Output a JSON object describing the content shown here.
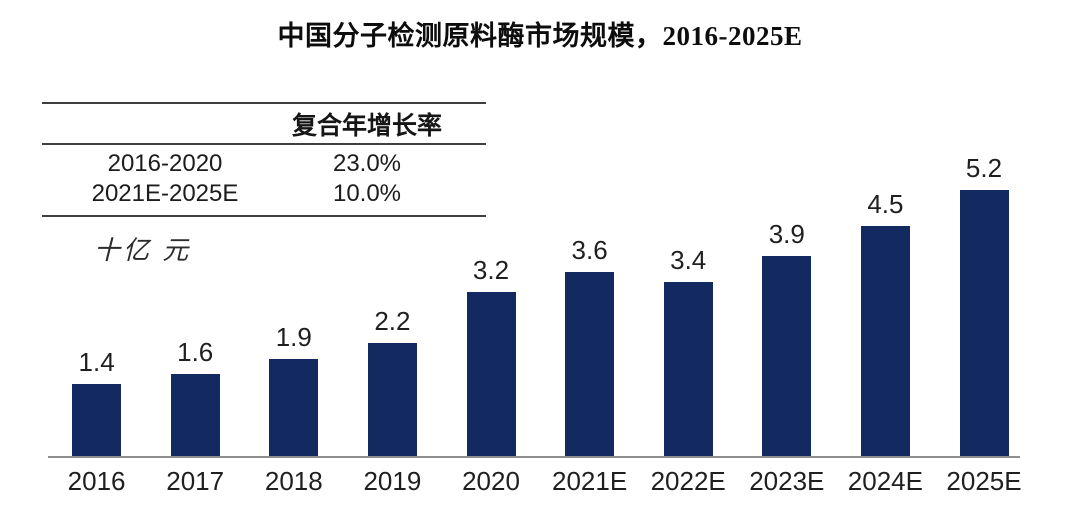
{
  "title": "中国分子检测原料酶市场规模，2016-2025E",
  "cagr_table": {
    "header": "复合年增长率",
    "rows": [
      {
        "period": "2016-2020",
        "value": "23.0%"
      },
      {
        "period": "2021E-2025E",
        "value": "10.0%"
      }
    ]
  },
  "unit_label": "十亿 元",
  "chart_data": {
    "type": "bar",
    "title": "中国分子检测原料酶市场规模，2016-2025E",
    "categories": [
      "2016",
      "2017",
      "2018",
      "2019",
      "2020",
      "2021E",
      "2022E",
      "2023E",
      "2024E",
      "2025E"
    ],
    "values": [
      1.4,
      1.6,
      1.9,
      2.2,
      3.2,
      3.6,
      3.4,
      3.9,
      4.5,
      5.2
    ],
    "xlabel": "",
    "ylabel": "十亿 元",
    "ylim": [
      0,
      5.5
    ],
    "grid": false,
    "legend": false,
    "data_labels": true,
    "annotations": [
      {
        "label": "复合年增长率 2016-2020",
        "value": "23.0%"
      },
      {
        "label": "复合年增长率 2021E-2025E",
        "value": "10.0%"
      }
    ],
    "bar_color": "#122A60",
    "axis_line_color": "#8E8E8E",
    "label_color": "#1F1F1F"
  },
  "colors": {
    "bar": "#122A60",
    "axis_line": "#8E8E8E",
    "table_rule": "#3F3F3F",
    "text": "#1F1F1F",
    "background": "#FFFFFF"
  }
}
